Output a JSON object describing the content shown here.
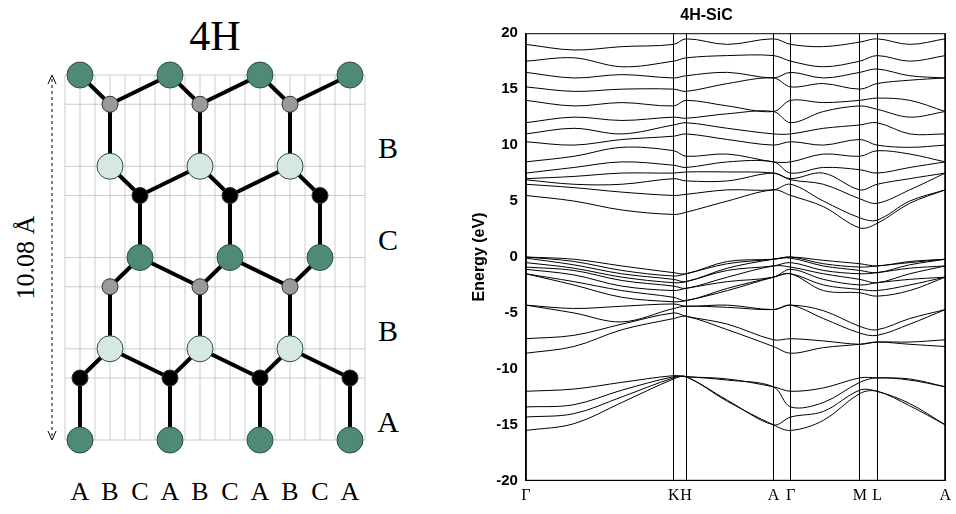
{
  "diagram": {
    "title": "4H",
    "height_label": "10.08 Å",
    "stacking": [
      "B",
      "C",
      "B",
      "A"
    ],
    "sequence": "ABCABCABCA"
  },
  "chart_data": {
    "type": "line",
    "title": "4H-SiC",
    "y_label": "Energy (eV)",
    "x": [
      0,
      0.5,
      1.0,
      1.54,
      1.67,
      2.1,
      2.58,
      2.76,
      3.1,
      3.48,
      3.66,
      4.0,
      4.37
    ],
    "xlim": [
      0,
      4.37
    ],
    "xticks": [
      {
        "value": 0,
        "label": "Γ"
      },
      {
        "value": 1.54,
        "label": "K"
      },
      {
        "value": 1.67,
        "label": "H"
      },
      {
        "value": 2.58,
        "label": "A"
      },
      {
        "value": 2.76,
        "label": "Γ"
      },
      {
        "value": 3.48,
        "label": "M"
      },
      {
        "value": 3.66,
        "label": "L"
      },
      {
        "value": 4.37,
        "label": "A"
      }
    ],
    "ylim": [
      -20,
      20
    ],
    "yticks": [
      -20,
      -15,
      -10,
      -5,
      0,
      5,
      10,
      15,
      20
    ],
    "grid": "x",
    "color": "#000000",
    "series": [
      {
        "values": [
          -15.5,
          -14.9,
          -13.0,
          -10.9,
          -10.7,
          -12.9,
          -15.0,
          -15.5,
          -14.6,
          -12.2,
          -12.0,
          -13.3,
          -15.0
        ]
      },
      {
        "values": [
          -14.3,
          -14.0,
          -12.5,
          -10.8,
          -10.7,
          -12.8,
          -15.0,
          -14.3,
          -13.8,
          -11.9,
          -12.0,
          -13.1,
          -15.0
        ]
      },
      {
        "values": [
          -13.4,
          -13.2,
          -11.9,
          -10.7,
          -10.7,
          -11.0,
          -11.6,
          -13.4,
          -13.0,
          -11.2,
          -10.8,
          -11.0,
          -11.6
        ]
      },
      {
        "values": [
          -12.0,
          -11.8,
          -11.2,
          -10.6,
          -10.7,
          -10.9,
          -11.6,
          -12.0,
          -11.7,
          -10.8,
          -10.8,
          -10.9,
          -11.6
        ]
      },
      {
        "values": [
          -8.6,
          -8.0,
          -6.5,
          -5.5,
          -5.3,
          -6.5,
          -8.0,
          -8.6,
          -8.1,
          -7.8,
          -7.6,
          -7.8,
          -8.0
        ]
      },
      {
        "values": [
          -7.3,
          -7.0,
          -6.0,
          -5.0,
          -5.3,
          -6.0,
          -7.4,
          -7.3,
          -7.5,
          -7.8,
          -7.6,
          -7.6,
          -7.4
        ]
      },
      {
        "values": [
          -4.3,
          -5.0,
          -5.8,
          -4.6,
          -4.4,
          -4.5,
          -4.7,
          -4.3,
          -5.5,
          -6.8,
          -7.0,
          -6.0,
          -4.7
        ]
      },
      {
        "values": [
          -4.3,
          -4.6,
          -4.4,
          -4.2,
          -4.4,
          -4.3,
          -4.7,
          -4.3,
          -4.8,
          -6.2,
          -6.5,
          -5.5,
          -4.7
        ]
      },
      {
        "values": [
          -1.5,
          -2.5,
          -3.6,
          -4.0,
          -3.9,
          -3.0,
          -1.8,
          -1.5,
          -3.0,
          -3.2,
          -3.5,
          -3.0,
          -1.8
        ]
      },
      {
        "values": [
          -1.5,
          -2.2,
          -3.0,
          -3.6,
          -3.9,
          -2.8,
          -1.8,
          -1.5,
          -2.5,
          -2.9,
          -3.0,
          -2.5,
          -1.8
        ]
      },
      {
        "values": [
          -1.1,
          -1.6,
          -2.6,
          -3.0,
          -2.8,
          -2.2,
          -1.8,
          -1.1,
          -2.0,
          -2.5,
          -2.3,
          -2.0,
          -1.8
        ]
      },
      {
        "values": [
          -0.9,
          -1.2,
          -2.1,
          -2.6,
          -2.8,
          -1.8,
          -0.8,
          -0.9,
          -1.5,
          -2.0,
          -2.3,
          -1.5,
          -0.8
        ]
      },
      {
        "values": [
          -0.5,
          -1.0,
          -1.8,
          -2.3,
          -2.2,
          -1.2,
          -0.8,
          -0.5,
          -1.2,
          -1.5,
          -1.4,
          -1.0,
          -0.8
        ]
      },
      {
        "values": [
          -0.1,
          -0.7,
          -1.5,
          -2.0,
          -2.2,
          -1.0,
          -0.2,
          -0.1,
          -0.8,
          -1.2,
          -1.4,
          -0.7,
          -0.2
        ]
      },
      {
        "values": [
          0.0,
          -0.4,
          -1.2,
          -1.7,
          -1.5,
          -0.6,
          -0.2,
          0.0,
          -0.6,
          -0.9,
          -0.8,
          -0.5,
          -0.2
        ]
      },
      {
        "values": [
          0.0,
          -0.2,
          -0.8,
          -1.4,
          -1.5,
          -0.4,
          -0.2,
          0.0,
          -0.3,
          -0.6,
          -0.8,
          -0.4,
          -0.2
        ]
      },
      {
        "values": [
          5.5,
          5.0,
          4.2,
          3.8,
          4.0,
          5.0,
          6.0,
          5.5,
          4.5,
          2.6,
          3.0,
          4.8,
          6.0
        ]
      },
      {
        "values": [
          6.5,
          6.2,
          5.8,
          5.5,
          5.6,
          6.0,
          6.0,
          6.5,
          5.0,
          3.5,
          3.3,
          5.0,
          6.0
        ]
      },
      {
        "values": [
          6.9,
          6.5,
          6.5,
          7.0,
          6.8,
          6.8,
          7.5,
          6.9,
          6.5,
          5.2,
          4.8,
          6.0,
          7.5
        ]
      },
      {
        "values": [
          7.0,
          7.2,
          7.5,
          7.5,
          7.6,
          7.6,
          7.5,
          7.0,
          7.5,
          6.0,
          6.5,
          7.0,
          7.5
        ]
      },
      {
        "values": [
          7.5,
          8.0,
          8.5,
          8.2,
          8.0,
          8.5,
          8.5,
          7.5,
          8.0,
          7.8,
          7.5,
          8.0,
          8.5
        ]
      },
      {
        "values": [
          8.5,
          9.0,
          9.8,
          9.5,
          9.0,
          9.2,
          8.5,
          8.5,
          9.2,
          9.0,
          9.5,
          9.2,
          8.5
        ]
      },
      {
        "values": [
          10.3,
          10.0,
          10.5,
          10.8,
          11.0,
          10.5,
          10.0,
          10.3,
          10.0,
          10.5,
          10.0,
          9.8,
          10.0
        ]
      },
      {
        "values": [
          11.0,
          11.5,
          11.0,
          11.8,
          12.0,
          11.5,
          11.0,
          11.0,
          11.5,
          11.8,
          12.0,
          11.0,
          11.0
        ]
      },
      {
        "values": [
          12.0,
          12.5,
          12.2,
          12.5,
          12.4,
          12.8,
          13.0,
          12.0,
          13.0,
          13.5,
          13.2,
          12.5,
          13.0
        ]
      },
      {
        "values": [
          14.0,
          13.5,
          13.8,
          13.5,
          14.0,
          13.5,
          13.0,
          14.0,
          13.8,
          14.0,
          14.2,
          14.0,
          13.0
        ]
      },
      {
        "values": [
          15.2,
          14.8,
          15.0,
          15.0,
          14.8,
          15.5,
          16.0,
          15.2,
          15.5,
          15.0,
          15.5,
          15.8,
          16.0
        ]
      },
      {
        "values": [
          16.5,
          16.0,
          16.3,
          16.0,
          16.2,
          16.5,
          16.0,
          16.5,
          16.0,
          16.5,
          16.8,
          16.2,
          16.0
        ]
      },
      {
        "values": [
          17.5,
          17.8,
          17.0,
          17.5,
          17.8,
          18.0,
          18.0,
          17.5,
          17.0,
          17.5,
          18.0,
          17.5,
          18.0
        ]
      },
      {
        "values": [
          19.0,
          18.5,
          18.8,
          19.0,
          19.5,
          19.0,
          19.5,
          19.0,
          18.8,
          19.2,
          19.5,
          19.0,
          19.5
        ]
      }
    ]
  }
}
